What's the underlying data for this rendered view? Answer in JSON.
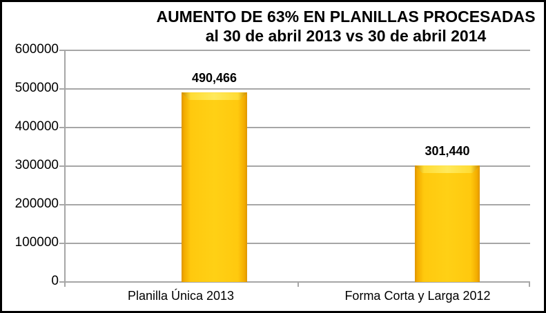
{
  "title": {
    "line1": "AUMENTO DE 63% EN PLANILLAS PROCESADAS",
    "line2": "al 30 de abril 2013 vs 30 de abril 2014"
  },
  "chart_data": {
    "type": "bar",
    "title": "AUMENTO DE 63% EN PLANILLAS PROCESADAS al 30 de abril 2013 vs 30 de abril 2014",
    "categories": [
      "Planilla Única 2013",
      "Forma Corta y Larga 2012"
    ],
    "values": [
      490466,
      301440
    ],
    "value_labels": [
      "490,466",
      "301,440"
    ],
    "xlabel": "",
    "ylabel": "",
    "ylim": [
      0,
      600000
    ],
    "y_ticks": [
      600000,
      500000,
      400000,
      300000,
      200000,
      100000,
      0
    ],
    "y_tick_labels": [
      "600000",
      "500000",
      "400000",
      "300000",
      "200000",
      "100000",
      "0"
    ],
    "grid": true,
    "legend": false,
    "bar_color": "#FFC90E"
  },
  "colors": {
    "background": "#FFFFFF",
    "border": "#000000",
    "gridline": "#A6A6A6",
    "axis": "#A6A6A6",
    "bar_main": "#FFC90E",
    "bar_edge": "#DD9500",
    "bar_bevel_highlight": "#FFE95C",
    "text": "#000000"
  }
}
